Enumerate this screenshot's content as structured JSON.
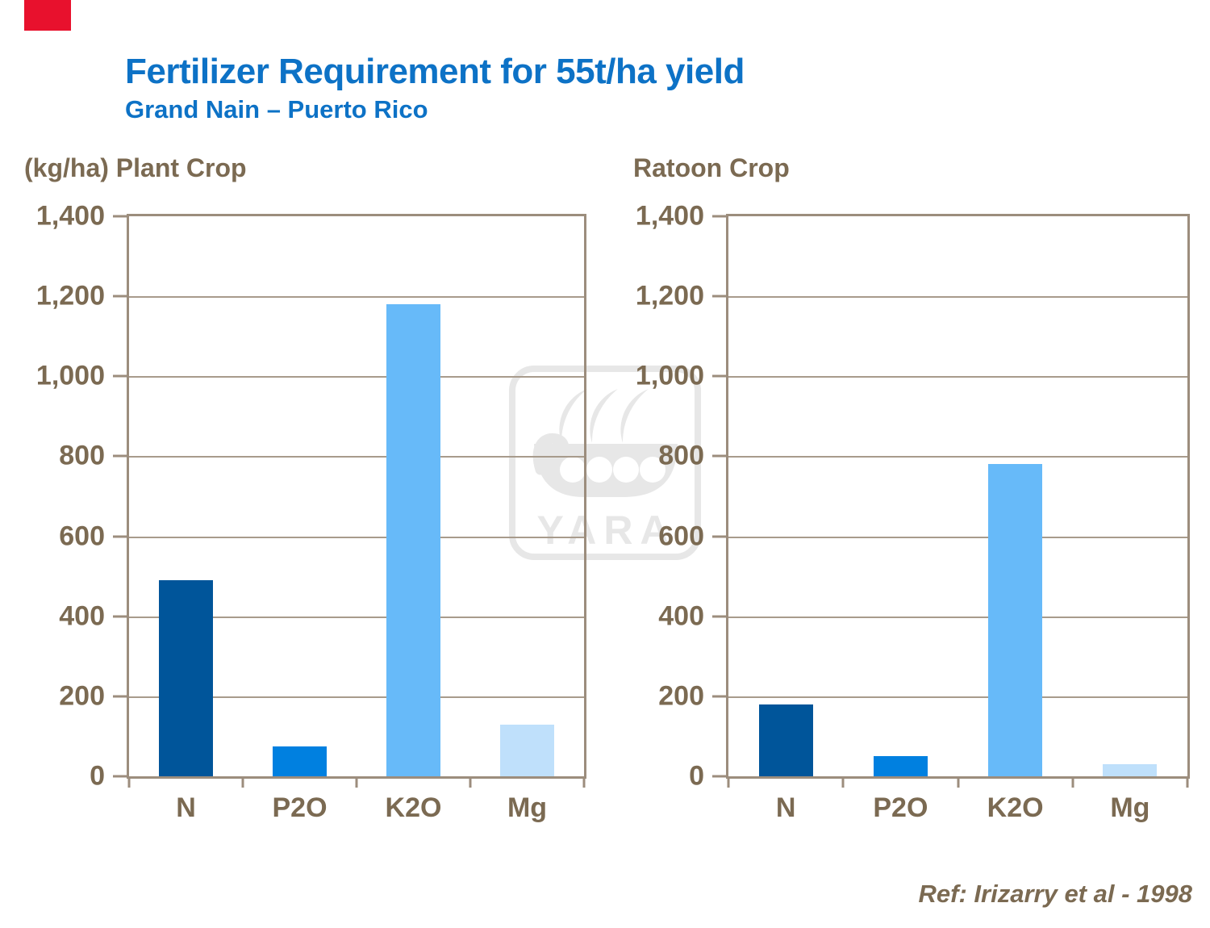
{
  "slide": {
    "title": "Fertilizer Requirement for 55t/ha yield",
    "subtitle": "Grand Nain – Puerto Rico",
    "reference": "Ref: Irizarry et al - 1998"
  },
  "branding": {
    "red_box_color": "#E8112D",
    "watermark_label": "YARA",
    "watermark_icon": "yara-viking-ship-logo",
    "watermark_color": "#E7E7E7"
  },
  "colors": {
    "title_blue": "#0D72C6",
    "text_taupe": "#7B6A52",
    "axis": "#9C8D7D",
    "grid": "#A89B8C",
    "bars": [
      "#00559A",
      "#0080E0",
      "#67BAF9",
      "#BFE0FB"
    ]
  },
  "chart_data": [
    {
      "type": "bar",
      "title": "(kg/ha) Plant Crop",
      "categories": [
        "N",
        "P2O",
        "K2O",
        "Mg"
      ],
      "values": [
        490,
        75,
        1180,
        130
      ],
      "xlabel": "",
      "ylabel": "kg/ha",
      "ylim": [
        0,
        1400
      ],
      "ytick_step": 200,
      "ytick_labels": [
        "0",
        "200",
        "400",
        "600",
        "800",
        "1,000",
        "1,200",
        "1,400"
      ],
      "grid": true,
      "legend": false
    },
    {
      "type": "bar",
      "title": "Ratoon Crop",
      "categories": [
        "N",
        "P2O",
        "K2O",
        "Mg"
      ],
      "values": [
        180,
        50,
        780,
        30
      ],
      "xlabel": "",
      "ylabel": "kg/ha",
      "ylim": [
        0,
        1400
      ],
      "ytick_step": 200,
      "ytick_labels": [
        "0",
        "200",
        "400",
        "600",
        "800",
        "1,000",
        "1,200",
        "1,400"
      ],
      "grid": true,
      "legend": false
    }
  ]
}
